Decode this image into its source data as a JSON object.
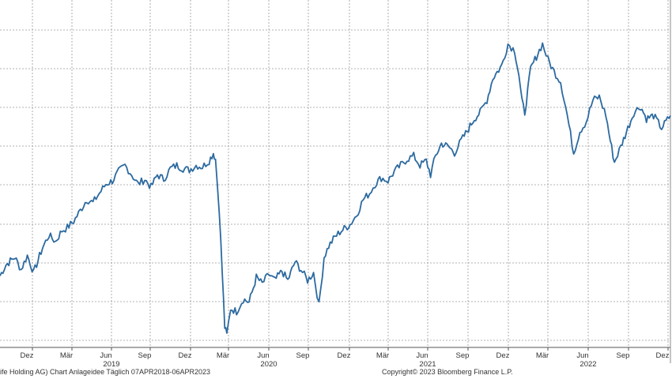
{
  "chart_data": {
    "type": "line",
    "title": "",
    "xlabel": "",
    "ylabel": "",
    "x_tick_labels": [
      "Dez",
      "Mär",
      "Jun",
      "Sep",
      "Dez",
      "Mär",
      "Jun",
      "Sep",
      "Dez",
      "Mär",
      "Jun",
      "Sep",
      "Dez",
      "Mär",
      "Jun",
      "Sep",
      "Dez"
    ],
    "year_labels": [
      "2019",
      "2020",
      "2021",
      "2022"
    ],
    "x_range": [
      "2018-10-01",
      "2023-02-10"
    ],
    "grid": true,
    "legend": "none",
    "line_color": "#2c6aa0",
    "series": [
      {
        "values": [
          [
            "2018-10-01",
            0.43
          ],
          [
            "2018-10-15",
            0.5
          ],
          [
            "2018-11-05",
            0.55
          ],
          [
            "2018-11-20",
            0.47
          ],
          [
            "2018-12-05",
            0.56
          ],
          [
            "2018-12-20",
            0.45
          ],
          [
            "2019-01-10",
            0.61
          ],
          [
            "2019-01-25",
            0.69
          ],
          [
            "2019-02-10",
            0.65
          ],
          [
            "2019-02-25",
            0.72
          ],
          [
            "2019-03-10",
            0.74
          ],
          [
            "2019-03-25",
            0.78
          ],
          [
            "2019-04-10",
            0.85
          ],
          [
            "2019-04-25",
            0.92
          ],
          [
            "2019-05-10",
            0.9
          ],
          [
            "2019-05-25",
            0.96
          ],
          [
            "2019-06-10",
            1.02
          ],
          [
            "2019-06-25",
            1.04
          ],
          [
            "2019-07-10",
            1.1
          ],
          [
            "2019-07-25",
            1.14
          ],
          [
            "2019-08-10",
            1.08
          ],
          [
            "2019-08-25",
            1.02
          ],
          [
            "2019-09-10",
            1.05
          ],
          [
            "2019-09-25",
            1.0
          ],
          [
            "2019-10-10",
            1.08
          ],
          [
            "2019-10-25",
            1.05
          ],
          [
            "2019-11-10",
            1.12
          ],
          [
            "2019-11-25",
            1.14
          ],
          [
            "2019-12-10",
            1.12
          ],
          [
            "2019-12-25",
            1.11
          ],
          [
            "2020-01-10",
            1.14
          ],
          [
            "2020-01-25",
            1.13
          ],
          [
            "2020-02-10",
            1.17
          ],
          [
            "2020-02-20",
            1.22
          ],
          [
            "2020-02-25",
            1.18
          ],
          [
            "2020-03-05",
            0.86
          ],
          [
            "2020-03-12",
            0.45
          ],
          [
            "2020-03-18",
            0.1
          ],
          [
            "2020-03-23",
            0.05
          ],
          [
            "2020-04-01",
            0.22
          ],
          [
            "2020-04-15",
            0.2
          ],
          [
            "2020-05-01",
            0.28
          ],
          [
            "2020-05-15",
            0.26
          ],
          [
            "2020-06-01",
            0.42
          ],
          [
            "2020-06-15",
            0.38
          ],
          [
            "2020-07-01",
            0.44
          ],
          [
            "2020-07-15",
            0.4
          ],
          [
            "2020-08-01",
            0.46
          ],
          [
            "2020-08-15",
            0.4
          ],
          [
            "2020-09-01",
            0.52
          ],
          [
            "2020-09-15",
            0.47
          ],
          [
            "2020-10-01",
            0.4
          ],
          [
            "2020-10-15",
            0.45
          ],
          [
            "2020-10-28",
            0.24
          ],
          [
            "2020-11-09",
            0.55
          ],
          [
            "2020-11-20",
            0.62
          ],
          [
            "2020-12-05",
            0.68
          ],
          [
            "2020-12-20",
            0.72
          ],
          [
            "2021-01-10",
            0.76
          ],
          [
            "2021-01-25",
            0.82
          ],
          [
            "2021-02-10",
            0.92
          ],
          [
            "2021-02-25",
            0.96
          ],
          [
            "2021-03-10",
            1.02
          ],
          [
            "2021-03-25",
            1.06
          ],
          [
            "2021-04-10",
            1.04
          ],
          [
            "2021-04-25",
            1.1
          ],
          [
            "2021-05-10",
            1.14
          ],
          [
            "2021-05-25",
            1.18
          ],
          [
            "2021-06-10",
            1.2
          ],
          [
            "2021-06-25",
            1.14
          ],
          [
            "2021-07-10",
            1.17
          ],
          [
            "2021-07-20",
            1.08
          ],
          [
            "2021-08-01",
            1.2
          ],
          [
            "2021-08-15",
            1.28
          ],
          [
            "2021-09-01",
            1.26
          ],
          [
            "2021-09-15",
            1.22
          ],
          [
            "2021-10-01",
            1.3
          ],
          [
            "2021-10-15",
            1.36
          ],
          [
            "2021-11-01",
            1.44
          ],
          [
            "2021-11-15",
            1.48
          ],
          [
            "2021-12-01",
            1.56
          ],
          [
            "2021-12-15",
            1.7
          ],
          [
            "2022-01-05",
            1.78
          ],
          [
            "2022-01-20",
            1.92
          ],
          [
            "2022-02-05",
            1.88
          ],
          [
            "2022-02-15",
            1.72
          ],
          [
            "2022-02-22",
            1.55
          ],
          [
            "2022-03-01",
            1.48
          ],
          [
            "2022-03-15",
            1.76
          ],
          [
            "2022-04-01",
            1.86
          ],
          [
            "2022-04-12",
            1.92
          ],
          [
            "2022-04-25",
            1.82
          ],
          [
            "2022-05-10",
            1.74
          ],
          [
            "2022-05-25",
            1.68
          ],
          [
            "2022-06-10",
            1.46
          ],
          [
            "2022-06-25",
            1.22
          ],
          [
            "2022-07-10",
            1.36
          ],
          [
            "2022-07-25",
            1.42
          ],
          [
            "2022-08-10",
            1.56
          ],
          [
            "2022-08-25",
            1.58
          ],
          [
            "2022-09-10",
            1.46
          ],
          [
            "2022-09-20",
            1.3
          ],
          [
            "2022-09-30",
            1.16
          ],
          [
            "2022-10-15",
            1.26
          ],
          [
            "2022-11-01",
            1.38
          ],
          [
            "2022-11-15",
            1.48
          ],
          [
            "2022-12-01",
            1.52
          ],
          [
            "2022-12-15",
            1.44
          ],
          [
            "2023-01-01",
            1.46
          ],
          [
            "2023-01-20",
            1.38
          ],
          [
            "2023-02-10",
            1.46
          ]
        ]
      }
    ]
  },
  "footer": {
    "left": "ife Holding AG) Chart Anlageidee  Täglich 07APR2018-06APR2023",
    "right": "Copyright© 2023 Bloomberg Finance L.P."
  }
}
